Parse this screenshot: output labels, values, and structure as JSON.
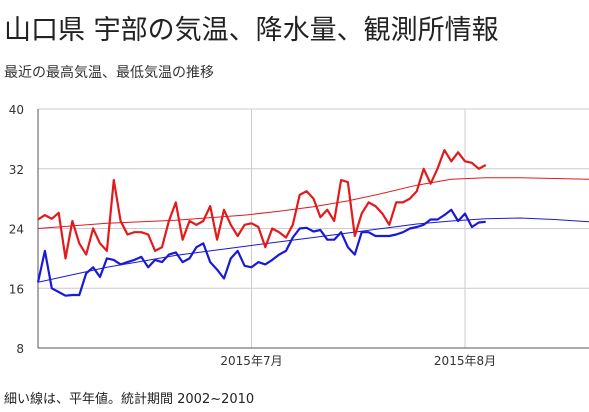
{
  "title": "山口県 宇部の気温、降水量、観測所情報",
  "subtitle": "最近の最高気温、最低気温の推移",
  "footnote": "細い線は、平年値。統計期間 2002~2010",
  "colors": {
    "high": "#e31a1c",
    "low": "#1a1ad6",
    "grid": "#cccccc",
    "axis": "#555555",
    "tick_text": "#333333"
  },
  "chart_data": {
    "type": "line",
    "ylim": [
      8,
      40
    ],
    "yticks": [
      8,
      16,
      24,
      32,
      40
    ],
    "xlabels": [
      {
        "label": "2015年7月",
        "day": 1
      },
      {
        "label": "2015年8月",
        "day": 32
      }
    ],
    "xlim": [
      -30,
      50
    ],
    "grid": true,
    "series": [
      {
        "key": "high",
        "x": [
          -30,
          -29,
          -28,
          -27,
          -26,
          -25,
          -24,
          -23,
          -22,
          -21,
          -20,
          -19,
          -18,
          -17,
          -16,
          -15,
          -14,
          -13,
          -12,
          -11,
          -10,
          -9,
          -8,
          -7,
          -6,
          -5,
          -4,
          -3,
          -2,
          -1,
          0,
          1,
          2,
          3,
          4,
          5,
          6,
          7,
          8,
          9,
          10,
          11,
          12,
          13,
          14,
          15,
          16,
          17,
          18,
          19,
          20,
          21,
          22,
          23,
          24,
          25,
          26,
          27,
          28,
          29,
          30,
          31,
          32,
          33,
          34,
          35
        ],
        "values": [
          25.2,
          25.8,
          25.3,
          26.1,
          20.0,
          25.0,
          22.0,
          20.5,
          24.0,
          22.0,
          21.0,
          30.5,
          25.0,
          23.2,
          23.5,
          23.5,
          23.2,
          21.0,
          21.5,
          25.0,
          27.5,
          22.5,
          25.0,
          24.5,
          25.0,
          27.0,
          22.5,
          26.5,
          24.5,
          23.0,
          24.5,
          24.7,
          24.2,
          21.5,
          24.0,
          23.5,
          22.8,
          24.5,
          28.5,
          29.0,
          28.0,
          25.5,
          26.5,
          25.0,
          30.5,
          30.2,
          23.0,
          26.0,
          27.5,
          27.0,
          26.0,
          24.5,
          27.5,
          27.5,
          28.0,
          29.0,
          32.0,
          30.0,
          32.0,
          34.5,
          33.0,
          34.2,
          33.0,
          32.8,
          32.0,
          32.5
        ]
      },
      {
        "key": "low",
        "x": [
          -30,
          -29,
          -28,
          -27,
          -26,
          -25,
          -24,
          -23,
          -22,
          -21,
          -20,
          -19,
          -18,
          -17,
          -16,
          -15,
          -14,
          -13,
          -12,
          -11,
          -10,
          -9,
          -8,
          -7,
          -6,
          -5,
          -4,
          -3,
          -2,
          -1,
          0,
          1,
          2,
          3,
          4,
          5,
          6,
          7,
          8,
          9,
          10,
          11,
          12,
          13,
          14,
          15,
          16,
          17,
          18,
          19,
          20,
          21,
          22,
          23,
          24,
          25,
          26,
          27,
          28,
          29,
          30,
          31,
          32,
          33,
          34,
          35
        ],
        "values": [
          16.8,
          21.0,
          16.0,
          15.5,
          15.0,
          15.1,
          15.1,
          18.0,
          18.8,
          17.5,
          20.0,
          19.8,
          19.2,
          19.5,
          19.8,
          20.2,
          18.8,
          19.8,
          19.5,
          20.5,
          20.8,
          19.5,
          20.0,
          21.5,
          22.0,
          19.5,
          18.5,
          17.3,
          20.0,
          21.0,
          19.0,
          18.8,
          19.5,
          19.2,
          19.8,
          20.5,
          21.0,
          22.8,
          24.0,
          24.1,
          23.6,
          23.8,
          22.5,
          22.5,
          23.5,
          21.5,
          20.5,
          23.5,
          23.5,
          23.0,
          23.0,
          23.0,
          23.2,
          23.5,
          24.0,
          24.2,
          24.5,
          25.2,
          25.2,
          25.8,
          26.5,
          25.0,
          26.0,
          24.2,
          24.8,
          24.9
        ]
      },
      {
        "key": "high_normal",
        "x": [
          -30,
          -20,
          -10,
          0,
          5,
          10,
          15,
          20,
          25,
          30,
          35,
          40,
          45,
          50
        ],
        "values": [
          24.0,
          24.7,
          25.1,
          25.8,
          26.3,
          26.9,
          27.7,
          28.7,
          29.8,
          30.6,
          30.8,
          30.8,
          30.7,
          30.6
        ]
      },
      {
        "key": "low_normal",
        "x": [
          -30,
          -20,
          -10,
          0,
          5,
          10,
          15,
          20,
          25,
          30,
          35,
          40,
          45,
          50
        ],
        "values": [
          16.8,
          18.8,
          20.4,
          21.6,
          22.2,
          22.8,
          23.4,
          24.0,
          24.6,
          25.0,
          25.3,
          25.4,
          25.2,
          24.9
        ]
      }
    ]
  }
}
